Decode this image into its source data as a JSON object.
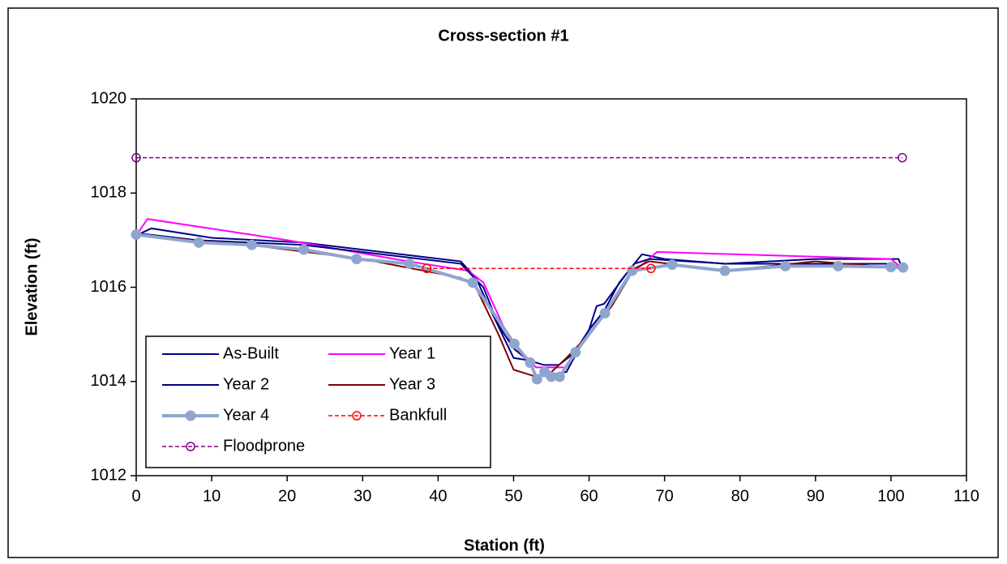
{
  "chart_data": {
    "type": "line",
    "title": "Cross-section #1",
    "x_label": "Station (ft)",
    "y_label": "Elevation (ft)",
    "xlim": [
      0,
      110
    ],
    "xticks": [
      0,
      10,
      20,
      30,
      40,
      50,
      60,
      70,
      80,
      90,
      100,
      110
    ],
    "ylim": [
      1012,
      1020
    ],
    "yticks": [
      1012,
      1014,
      1016,
      1018,
      1020
    ],
    "legend": "lower left",
    "series": [
      {
        "name": "As-Built",
        "color": "#000080",
        "width": 2,
        "dashed": false,
        "marker": "none",
        "x": [
          0,
          2,
          10,
          22,
          43,
          45,
          47,
          50,
          52,
          53,
          57,
          60,
          61,
          62,
          65,
          67,
          70,
          78,
          90,
          101,
          101.5
        ],
        "values": [
          1017.1,
          1017.25,
          1017.05,
          1016.95,
          1016.55,
          1016.2,
          1015.5,
          1014.5,
          1014.45,
          1014.1,
          1014.2,
          1015.1,
          1015.6,
          1015.65,
          1016.3,
          1016.7,
          1016.6,
          1016.5,
          1016.6,
          1016.6,
          1016.4
        ]
      },
      {
        "name": "Year 1",
        "color": "#ff00ff",
        "width": 2,
        "dashed": false,
        "marker": "none",
        "x": [
          0,
          1.5,
          20,
          36,
          44,
          46,
          50,
          53,
          57,
          60,
          63,
          65,
          69,
          100,
          101.5
        ],
        "values": [
          1017.1,
          1017.45,
          1017.0,
          1016.55,
          1016.35,
          1016.1,
          1014.7,
          1014.3,
          1014.3,
          1015.0,
          1015.6,
          1016.2,
          1016.75,
          1016.6,
          1016.4
        ]
      },
      {
        "name": "Year 2",
        "color": "#000080",
        "width": 2,
        "dashed": false,
        "marker": "none",
        "x": [
          0,
          8,
          22,
          43,
          46,
          48,
          50,
          52,
          54,
          56,
          58,
          60,
          62,
          64,
          66,
          68,
          78,
          100,
          101.5
        ],
        "values": [
          1017.15,
          1017.0,
          1016.9,
          1016.5,
          1016.0,
          1015.2,
          1014.7,
          1014.45,
          1014.35,
          1014.35,
          1014.6,
          1015.1,
          1015.5,
          1016.1,
          1016.5,
          1016.6,
          1016.5,
          1016.5,
          1016.4
        ]
      },
      {
        "name": "Year 3",
        "color": "#800000",
        "width": 2,
        "dashed": false,
        "marker": "none",
        "x": [
          0,
          15,
          30,
          43,
          45,
          48,
          50,
          53,
          55,
          57,
          60,
          63,
          66,
          68,
          78,
          90,
          101.5
        ],
        "values": [
          1017.1,
          1016.9,
          1016.6,
          1016.2,
          1016.0,
          1015.0,
          1014.25,
          1014.1,
          1014.2,
          1014.5,
          1015.0,
          1015.6,
          1016.4,
          1016.55,
          1016.35,
          1016.55,
          1016.4
        ]
      },
      {
        "name": "Year 4",
        "color": "#8ea6cf",
        "width": 4,
        "dashed": false,
        "marker": "circle",
        "x": [
          0,
          8.3,
          15.3,
          22.2,
          29.2,
          36.2,
          44.6,
          50.1,
          52.2,
          53.1,
          54.1,
          55,
          56.1,
          58.2,
          62.1,
          65.7,
          71,
          78,
          86,
          93,
          100,
          101.6
        ],
        "values": [
          1017.12,
          1016.95,
          1016.9,
          1016.8,
          1016.6,
          1016.5,
          1016.1,
          1014.8,
          1014.4,
          1014.05,
          1014.2,
          1014.1,
          1014.1,
          1014.62,
          1015.45,
          1016.35,
          1016.48,
          1016.35,
          1016.45,
          1016.45,
          1016.43,
          1016.42
        ]
      },
      {
        "name": "Bankfull",
        "color": "#ff0000",
        "width": 1.5,
        "dashed": true,
        "marker": "open-circle",
        "x": [
          38.5,
          68.2
        ],
        "values": [
          1016.4,
          1016.4
        ]
      },
      {
        "name": "Floodprone",
        "color": "#800080",
        "width": 1.5,
        "dashed": true,
        "marker": "open-circle",
        "x": [
          0,
          101.5
        ],
        "values": [
          1018.75,
          1018.75
        ]
      }
    ]
  }
}
